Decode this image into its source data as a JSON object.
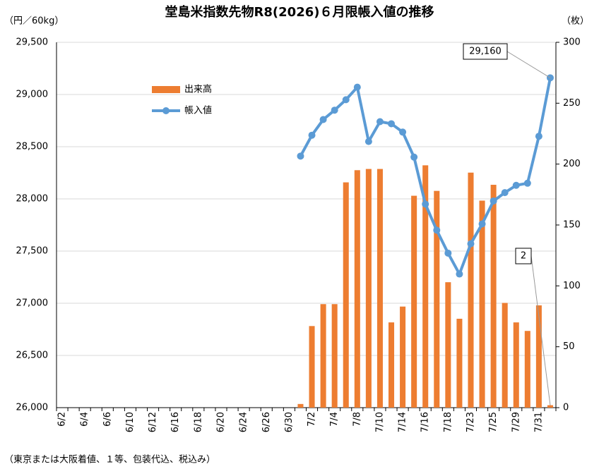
{
  "chart_data": {
    "type": "bar-line",
    "title": "堂島米指数先物R8(2026)６月限帳入値の推移",
    "y_label": "（円／60kg）",
    "y2_label": "（枚）",
    "footnote": "（東京または大阪着値、１等、包装代込、税込み）",
    "categories": [
      "6/2",
      null,
      "6/4",
      null,
      "6/6",
      null,
      "6/10",
      null,
      "6/12",
      null,
      "6/16",
      null,
      "6/18",
      null,
      "6/20",
      null,
      "6/24",
      null,
      "6/26",
      null,
      "6/30",
      null,
      "7/2",
      null,
      "7/4",
      null,
      "7/8",
      null,
      "7/10",
      null,
      "7/14",
      null,
      "7/16",
      null,
      "7/18",
      null,
      "7/23",
      null,
      "7/25",
      null,
      "7/29",
      null,
      "7/31",
      null
    ],
    "series": [
      {
        "name": "出来高",
        "type": "bar",
        "axis": "y2",
        "color": "#ed7d31",
        "values": [
          null,
          null,
          null,
          null,
          null,
          null,
          null,
          null,
          null,
          null,
          null,
          null,
          null,
          null,
          null,
          null,
          null,
          null,
          null,
          null,
          null,
          3,
          67,
          85,
          85,
          185,
          195,
          196,
          196,
          70,
          83,
          174,
          199,
          178,
          103,
          73,
          193,
          170,
          183,
          86,
          70,
          63,
          84,
          2
        ]
      },
      {
        "name": "帳入値",
        "type": "line",
        "axis": "y",
        "color": "#5b9bd5",
        "values": [
          null,
          null,
          null,
          null,
          null,
          null,
          null,
          null,
          null,
          null,
          null,
          null,
          null,
          null,
          null,
          null,
          null,
          null,
          null,
          null,
          null,
          28410,
          28610,
          28760,
          28850,
          28950,
          29070,
          28550,
          28740,
          28720,
          28640,
          28400,
          27950,
          27700,
          27480,
          27280,
          27570,
          27760,
          27980,
          28060,
          28130,
          28150,
          28600,
          29160
        ],
        "value_labels": [
          null,
          null,
          null,
          null,
          null,
          null,
          null,
          null,
          null,
          null,
          null,
          null,
          null,
          null,
          null,
          null,
          null,
          null,
          null,
          null,
          null,
          null,
          null,
          null,
          null,
          null,
          null,
          null,
          null,
          null,
          null,
          null,
          null,
          null,
          null,
          null,
          null,
          null,
          null,
          null,
          null,
          null,
          null,
          "29,160"
        ]
      }
    ],
    "ylim": [
      26000,
      29500
    ],
    "yticks": [
      {
        "value": 26000,
        "label": "26,000"
      },
      {
        "value": 26500,
        "label": "26,500"
      },
      {
        "value": 27000,
        "label": "27,000"
      },
      {
        "value": 27500,
        "label": "27,500"
      },
      {
        "value": 28000,
        "label": "28,000"
      },
      {
        "value": 28500,
        "label": "28,500"
      },
      {
        "value": 29000,
        "label": "29,000"
      },
      {
        "value": 29500,
        "label": "29,500"
      }
    ],
    "y2lim": [
      0,
      300
    ],
    "y2ticks": [
      0,
      50,
      100,
      150,
      200,
      250,
      300
    ],
    "grid": true,
    "legend": "upper-left"
  }
}
